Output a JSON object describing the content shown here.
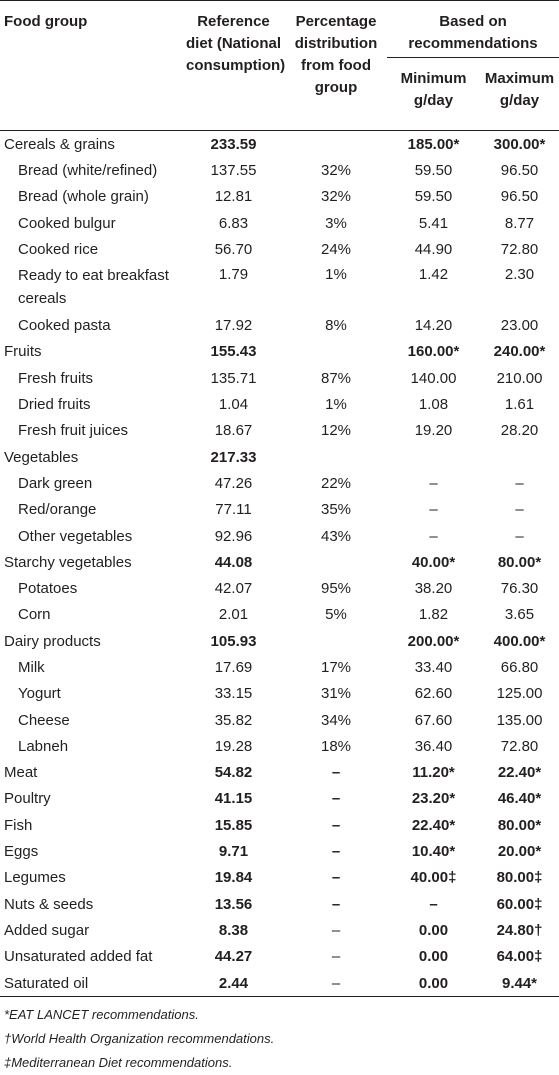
{
  "header": {
    "food_group": "Food group",
    "reference": "Reference diet (National consumption)",
    "percentage": "Percentage distribution from food group",
    "based_on": "Based on recommendations",
    "minimum": "Minimum g/day",
    "maximum": "Maximum g/day"
  },
  "table": {
    "rows": [
      {
        "name": "Cereals & grains",
        "level": 0,
        "bold": true,
        "cells": [
          "233.59",
          null,
          "185.00*",
          "300.00*"
        ]
      },
      {
        "name": "Bread (white/refined)",
        "level": 1,
        "bold": false,
        "cells": [
          "137.55",
          "32%",
          "59.50",
          "96.50"
        ]
      },
      {
        "name": "Bread (whole grain)",
        "level": 1,
        "bold": false,
        "cells": [
          "12.81",
          "32%",
          "59.50",
          "96.50"
        ]
      },
      {
        "name": "Cooked bulgur",
        "level": 1,
        "bold": false,
        "cells": [
          "6.83",
          "3%",
          "5.41",
          "8.77"
        ]
      },
      {
        "name": "Cooked rice",
        "level": 1,
        "bold": false,
        "cells": [
          "56.70",
          "24%",
          "44.90",
          "72.80"
        ]
      },
      {
        "name": "Ready to eat breakfast cereals",
        "level": 1,
        "bold": false,
        "cells": [
          "1.79",
          "1%",
          "1.42",
          "2.30"
        ]
      },
      {
        "name": "Cooked pasta",
        "level": 1,
        "bold": false,
        "cells": [
          "17.92",
          "8%",
          "14.20",
          "23.00"
        ]
      },
      {
        "name": "Fruits",
        "level": 0,
        "bold": true,
        "cells": [
          "155.43",
          null,
          "160.00*",
          "240.00*"
        ]
      },
      {
        "name": "Fresh fruits",
        "level": 1,
        "bold": false,
        "cells": [
          "135.71",
          "87%",
          "140.00",
          "210.00"
        ]
      },
      {
        "name": "Dried fruits",
        "level": 1,
        "bold": false,
        "cells": [
          "1.04",
          "1%",
          "1.08",
          "1.61"
        ]
      },
      {
        "name": "Fresh fruit juices",
        "level": 1,
        "bold": false,
        "cells": [
          "18.67",
          "12%",
          "19.20",
          "28.20"
        ]
      },
      {
        "name": "Vegetables",
        "level": 0,
        "bold": true,
        "cells": [
          "217.33",
          null,
          null,
          null
        ]
      },
      {
        "name": "Dark green",
        "level": 1,
        "bold": false,
        "cells": [
          "47.26",
          "22%",
          "–",
          "–"
        ]
      },
      {
        "name": "Red/orange",
        "level": 1,
        "bold": false,
        "cells": [
          "77.11",
          "35%",
          "–",
          "–"
        ]
      },
      {
        "name": "Other vegetables",
        "level": 1,
        "bold": false,
        "cells": [
          "92.96",
          "43%",
          "–",
          "–"
        ]
      },
      {
        "name": "Starchy vegetables",
        "level": 0,
        "bold": true,
        "cells": [
          "44.08",
          null,
          "40.00*",
          "80.00*"
        ]
      },
      {
        "name": "Potatoes",
        "level": 1,
        "bold": false,
        "cells": [
          "42.07",
          "95%",
          "38.20",
          "76.30"
        ]
      },
      {
        "name": "Corn",
        "level": 1,
        "bold": false,
        "cells": [
          "2.01",
          "5%",
          "1.82",
          "3.65"
        ]
      },
      {
        "name": "Dairy products",
        "level": 0,
        "bold": true,
        "cells": [
          "105.93",
          null,
          "200.00*",
          "400.00*"
        ]
      },
      {
        "name": "Milk",
        "level": 1,
        "bold": false,
        "cells": [
          "17.69",
          "17%",
          "33.40",
          "66.80"
        ]
      },
      {
        "name": "Yogurt",
        "level": 1,
        "bold": false,
        "cells": [
          "33.15",
          "31%",
          "62.60",
          "125.00"
        ]
      },
      {
        "name": "Cheese",
        "level": 1,
        "bold": false,
        "cells": [
          "35.82",
          "34%",
          "67.60",
          "135.00"
        ]
      },
      {
        "name": "Labneh",
        "level": 1,
        "bold": false,
        "cells": [
          "19.28",
          "18%",
          "36.40",
          "72.80"
        ]
      },
      {
        "name": "Meat",
        "level": 0,
        "bold": true,
        "cells": [
          "54.82",
          "–",
          "11.20*",
          "22.40*"
        ]
      },
      {
        "name": "Poultry",
        "level": 0,
        "bold": true,
        "cells": [
          "41.15",
          "–",
          "23.20*",
          "46.40*"
        ]
      },
      {
        "name": "Fish",
        "level": 0,
        "bold": true,
        "cells": [
          "15.85",
          "–",
          "22.40*",
          "80.00*"
        ]
      },
      {
        "name": "Eggs",
        "level": 0,
        "bold": true,
        "cells": [
          "9.71",
          "–",
          "10.40*",
          "20.00*"
        ]
      },
      {
        "name": "Legumes",
        "level": 0,
        "bold": true,
        "cells": [
          "19.84",
          "–",
          "40.00‡",
          "80.00‡"
        ]
      },
      {
        "name": "Nuts & seeds",
        "level": 0,
        "bold": true,
        "cells": [
          "13.56",
          "–",
          "–",
          "60.00‡"
        ]
      },
      {
        "name": "Added sugar",
        "level": 0,
        "bold": true,
        "cells": [
          "8.38",
          "–",
          "0.00",
          "24.80†"
        ]
      },
      {
        "name": "Unsaturated added fat",
        "level": 0,
        "bold": true,
        "cells": [
          "44.27",
          "–",
          "0.00",
          "64.00‡"
        ]
      },
      {
        "name": "Saturated oil",
        "level": 0,
        "bold": true,
        "cells": [
          "2.44",
          "–",
          "0.00",
          "9.44*"
        ]
      }
    ]
  },
  "footnotes": [
    "*EAT LANCET recommendations.",
    "†World Health Organization recommendations.",
    "‡Mediterranean Diet recommendations."
  ]
}
